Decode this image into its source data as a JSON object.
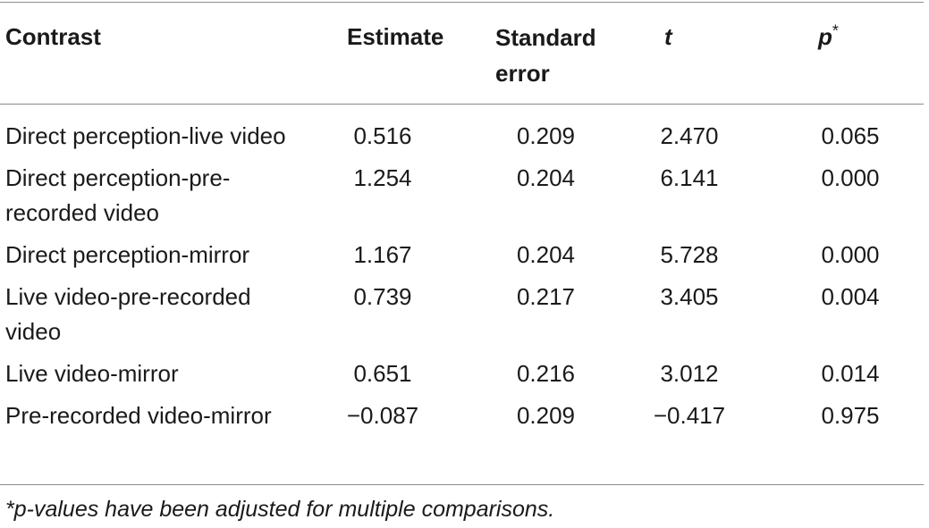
{
  "table": {
    "headers": [
      {
        "label": "Contrast"
      },
      {
        "label": "Estimate"
      },
      {
        "label_line1": "Standard",
        "label_line2": "error"
      },
      {
        "label": "t"
      },
      {
        "label": "p",
        "sup": "*"
      }
    ],
    "rows": [
      {
        "contrast": "Direct perception-live video",
        "estimate": "0.516",
        "standard_error": "0.209",
        "t": "2.470",
        "p": "0.065"
      },
      {
        "contrast": "Direct perception-pre-recorded video",
        "estimate": "1.254",
        "standard_error": "0.204",
        "t": "6.141",
        "p": "0.000"
      },
      {
        "contrast": "Direct perception-mirror",
        "estimate": "1.167",
        "standard_error": "0.204",
        "t": "5.728",
        "p": "0.000"
      },
      {
        "contrast": "Live video-pre-recorded video",
        "estimate": "0.739",
        "standard_error": "0.217",
        "t": "3.405",
        "p": "0.004"
      },
      {
        "contrast": "Live video-mirror",
        "estimate": "0.651",
        "standard_error": "0.216",
        "t": "3.012",
        "p": "0.014"
      },
      {
        "contrast": "Pre-recorded video-mirror",
        "estimate": "−0.087",
        "standard_error": "0.209",
        "t": "−0.417",
        "p": "0.975"
      }
    ]
  },
  "footnote": "*p-values have been adjusted for multiple comparisons."
}
